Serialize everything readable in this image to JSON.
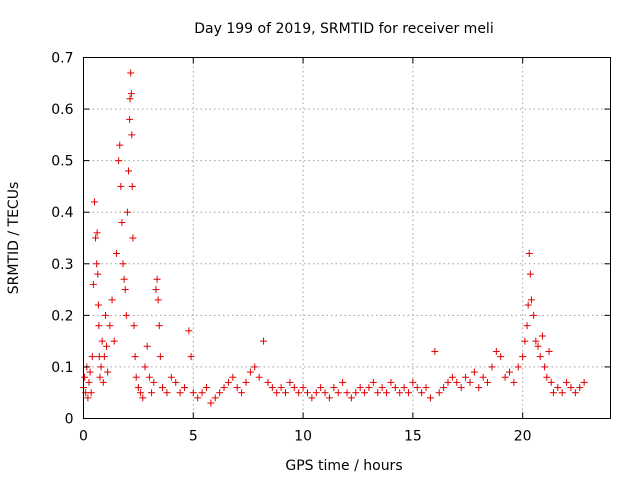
{
  "chart_data": {
    "type": "scatter",
    "title": "Day 199 of 2019, SRMTID for receiver meli",
    "xlabel": "GPS time / hours",
    "ylabel": "SRMTID / TECUs",
    "xlim": [
      0,
      24
    ],
    "ylim": [
      0,
      0.7
    ],
    "xticks": [
      0,
      5,
      10,
      15,
      20
    ],
    "xtick_labels": [
      "0",
      "5",
      "10",
      "15",
      "20"
    ],
    "yticks": [
      0,
      0.1,
      0.2,
      0.3,
      0.4,
      0.5,
      0.6,
      0.7
    ],
    "ytick_labels": [
      "0",
      "0.1",
      "0.2",
      "0.3",
      "0.4",
      "0.5",
      "0.6",
      "0.7"
    ],
    "grid": true,
    "marker": "+",
    "color": "#e00000",
    "series": [
      {
        "name": "SRMTID",
        "x": [
          0.0,
          0.05,
          0.1,
          0.15,
          0.2,
          0.25,
          0.3,
          0.35,
          0.4,
          0.45,
          0.5,
          0.55,
          0.6,
          0.62,
          0.65,
          0.68,
          0.7,
          0.72,
          0.75,
          0.8,
          0.85,
          0.9,
          0.95,
          1.0,
          1.05,
          1.1,
          1.2,
          1.3,
          1.4,
          1.5,
          1.6,
          1.65,
          1.7,
          1.75,
          1.8,
          1.85,
          1.9,
          1.95,
          2.0,
          2.05,
          2.1,
          2.12,
          2.15,
          2.18,
          2.2,
          2.22,
          2.25,
          2.3,
          2.35,
          2.4,
          2.5,
          2.6,
          2.7,
          2.8,
          2.9,
          3.0,
          3.1,
          3.2,
          3.3,
          3.35,
          3.4,
          3.45,
          3.5,
          3.6,
          3.8,
          4.0,
          4.2,
          4.4,
          4.6,
          4.8,
          4.9,
          5.0,
          5.2,
          5.4,
          5.6,
          5.8,
          6.0,
          6.2,
          6.4,
          6.6,
          6.8,
          7.0,
          7.2,
          7.4,
          7.6,
          7.8,
          8.0,
          8.2,
          8.4,
          8.6,
          8.8,
          9.0,
          9.2,
          9.4,
          9.6,
          9.8,
          10.0,
          10.2,
          10.4,
          10.6,
          10.8,
          11.0,
          11.2,
          11.4,
          11.6,
          11.8,
          12.0,
          12.2,
          12.4,
          12.6,
          12.8,
          13.0,
          13.2,
          13.4,
          13.6,
          13.8,
          14.0,
          14.2,
          14.4,
          14.6,
          14.8,
          15.0,
          15.2,
          15.4,
          15.6,
          15.8,
          16.0,
          16.2,
          16.4,
          16.6,
          16.8,
          17.0,
          17.2,
          17.4,
          17.6,
          17.8,
          18.0,
          18.2,
          18.4,
          18.6,
          18.8,
          19.0,
          19.2,
          19.4,
          19.6,
          19.8,
          20.0,
          20.1,
          20.2,
          20.25,
          20.3,
          20.35,
          20.4,
          20.5,
          20.6,
          20.7,
          20.8,
          20.9,
          21.0,
          21.1,
          21.2,
          21.3,
          21.4,
          21.6,
          21.8,
          22.0,
          22.2,
          22.4,
          22.6,
          22.8
        ],
        "y": [
          0.06,
          0.08,
          0.05,
          0.1,
          0.04,
          0.07,
          0.09,
          0.05,
          0.12,
          0.26,
          0.42,
          0.35,
          0.3,
          0.36,
          0.28,
          0.22,
          0.18,
          0.12,
          0.08,
          0.1,
          0.15,
          0.07,
          0.12,
          0.2,
          0.14,
          0.09,
          0.18,
          0.23,
          0.15,
          0.32,
          0.5,
          0.53,
          0.45,
          0.38,
          0.3,
          0.27,
          0.25,
          0.2,
          0.4,
          0.48,
          0.58,
          0.62,
          0.67,
          0.63,
          0.55,
          0.45,
          0.35,
          0.18,
          0.12,
          0.08,
          0.06,
          0.05,
          0.04,
          0.1,
          0.14,
          0.08,
          0.05,
          0.07,
          0.25,
          0.27,
          0.23,
          0.18,
          0.12,
          0.06,
          0.05,
          0.08,
          0.07,
          0.05,
          0.06,
          0.17,
          0.12,
          0.05,
          0.04,
          0.05,
          0.06,
          0.03,
          0.04,
          0.05,
          0.06,
          0.07,
          0.08,
          0.06,
          0.05,
          0.07,
          0.09,
          0.1,
          0.08,
          0.15,
          0.07,
          0.06,
          0.05,
          0.06,
          0.05,
          0.07,
          0.06,
          0.05,
          0.06,
          0.05,
          0.04,
          0.05,
          0.06,
          0.05,
          0.04,
          0.06,
          0.05,
          0.07,
          0.05,
          0.04,
          0.05,
          0.06,
          0.05,
          0.06,
          0.07,
          0.05,
          0.06,
          0.05,
          0.07,
          0.06,
          0.05,
          0.06,
          0.05,
          0.07,
          0.06,
          0.05,
          0.06,
          0.04,
          0.13,
          0.05,
          0.06,
          0.07,
          0.08,
          0.07,
          0.06,
          0.08,
          0.07,
          0.09,
          0.06,
          0.08,
          0.07,
          0.1,
          0.13,
          0.12,
          0.08,
          0.09,
          0.07,
          0.1,
          0.12,
          0.15,
          0.18,
          0.22,
          0.32,
          0.28,
          0.23,
          0.2,
          0.15,
          0.14,
          0.12,
          0.16,
          0.1,
          0.08,
          0.13,
          0.07,
          0.05,
          0.06,
          0.05,
          0.07,
          0.06,
          0.05,
          0.06,
          0.07
        ]
      }
    ]
  }
}
